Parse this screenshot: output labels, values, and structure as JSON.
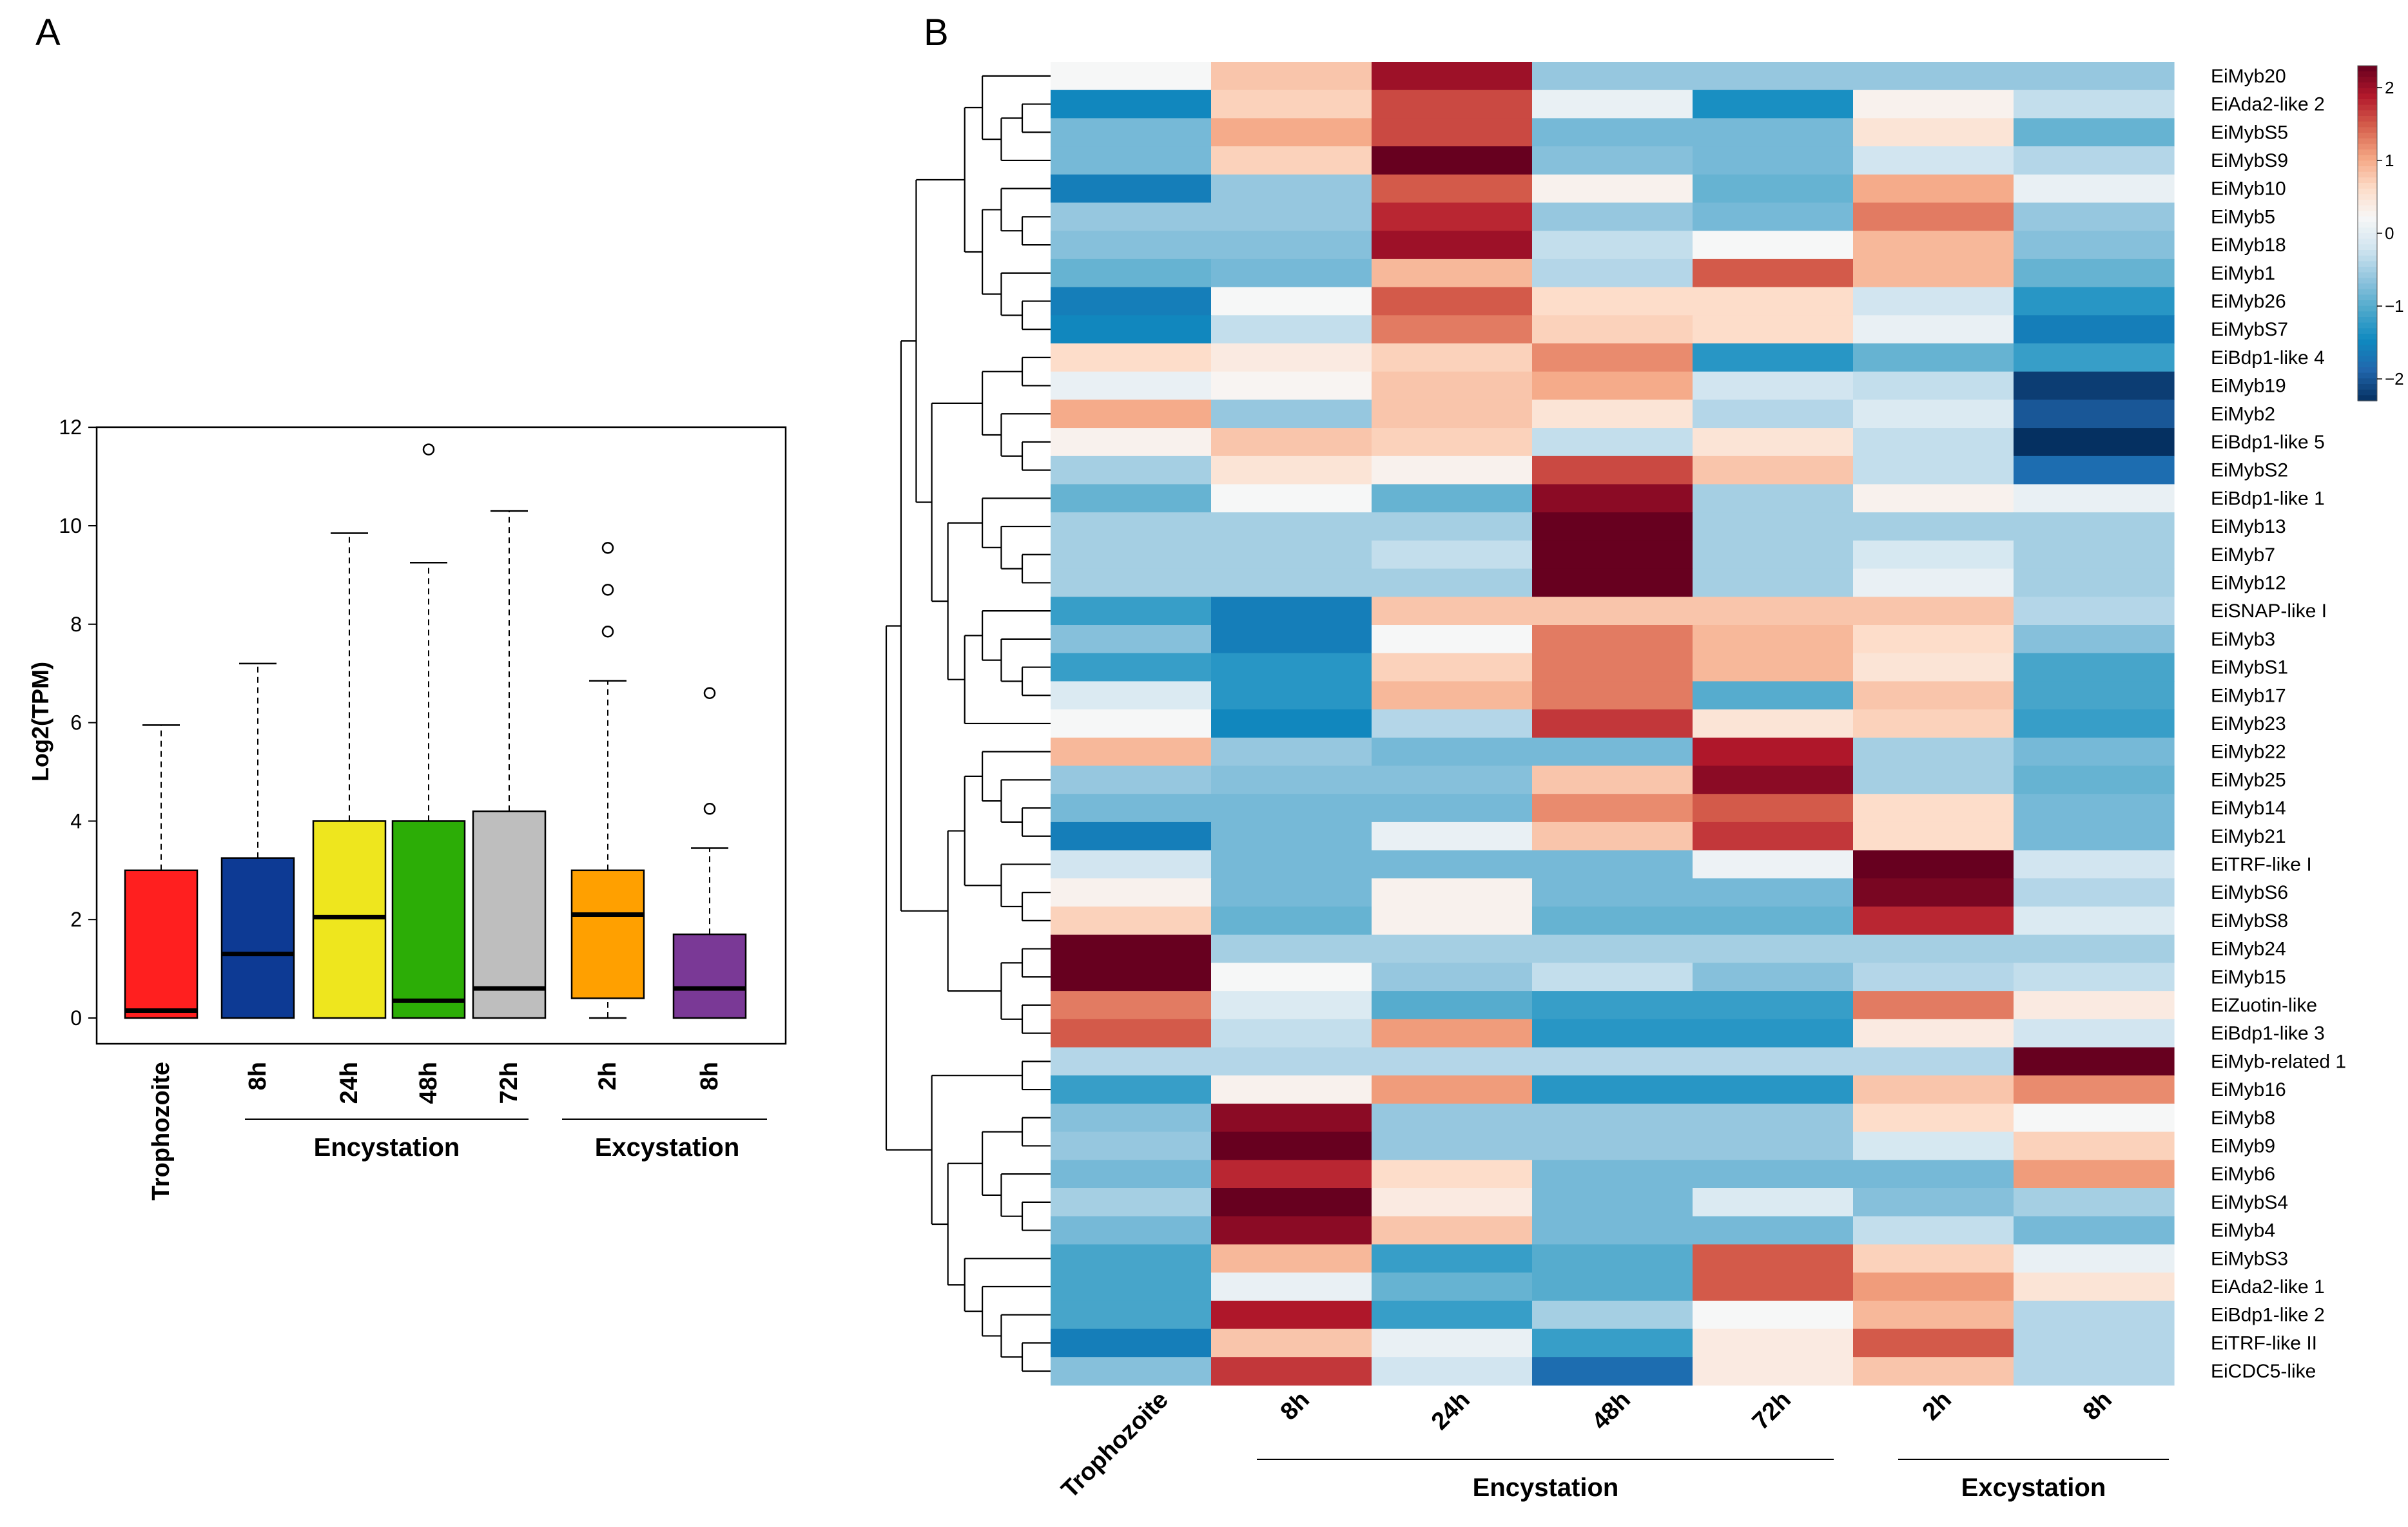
{
  "panels": {
    "a": "A",
    "b": "B"
  },
  "chart_data": [
    {
      "type": "box",
      "title": "",
      "ylabel": "Log2(TPM)",
      "ylim": [
        -0.5,
        12
      ],
      "yticks": [
        "0",
        "2",
        "4",
        "6",
        "8",
        "10",
        "12"
      ],
      "categories": [
        "Trophozoite",
        "8h",
        "24h",
        "48h",
        "72h",
        "2h",
        "8h"
      ],
      "groups": [
        {
          "label": "Encystation",
          "categories": [
            "8h",
            "24h",
            "48h",
            "72h"
          ]
        },
        {
          "label": "Excystation",
          "categories": [
            "2h",
            "8h"
          ]
        }
      ],
      "boxes": [
        {
          "name": "Trophozoite",
          "q1": 0,
          "median": 0.15,
          "q3": 3.0,
          "lower": 0,
          "upper": 5.95,
          "outliers": [],
          "color": "#ff1f1f"
        },
        {
          "name": "8h",
          "q1": 0,
          "median": 1.3,
          "q3": 3.25,
          "lower": 0,
          "upper": 7.2,
          "outliers": [],
          "color": "#0d3a94"
        },
        {
          "name": "24h",
          "q1": 0,
          "median": 2.05,
          "q3": 4.0,
          "lower": 0,
          "upper": 9.85,
          "outliers": [],
          "color": "#eee61e"
        },
        {
          "name": "48h",
          "q1": 0,
          "median": 0.35,
          "q3": 4.0,
          "lower": 0,
          "upper": 9.25,
          "outliers": [
            11.55
          ],
          "color": "#2cad06"
        },
        {
          "name": "72h",
          "q1": 0,
          "median": 0.6,
          "q3": 4.2,
          "lower": 0,
          "upper": 10.3,
          "outliers": [],
          "color": "#bebebe"
        },
        {
          "name": "2h",
          "q1": 0.4,
          "median": 2.1,
          "q3": 3.0,
          "lower": 0,
          "upper": 6.85,
          "outliers": [
            7.85,
            8.7,
            9.55
          ],
          "color": "#ffa000"
        },
        {
          "name": "8h",
          "q1": 0,
          "median": 0.6,
          "q3": 1.7,
          "lower": 0,
          "upper": 3.45,
          "outliers": [
            4.25,
            6.6
          ],
          "color": "#7a3996"
        }
      ]
    },
    {
      "type": "heatmap",
      "title": "",
      "columns": [
        "Trophozoite",
        "8h",
        "24h",
        "48h",
        "72h",
        "2h",
        "8h"
      ],
      "groups": [
        {
          "label": "Encystation",
          "columns": [
            "8h",
            "24h",
            "48h",
            "72h"
          ]
        },
        {
          "label": "Excystation",
          "columns": [
            "2h",
            "8h"
          ]
        }
      ],
      "color_scale": {
        "min": -2.3,
        "max": 2.3,
        "ticks": [
          "2",
          "1",
          "0",
          "−1",
          "−2"
        ],
        "colors": [
          "#053061",
          "#2166ac",
          "#0f8ac0",
          "#4fa9cc",
          "#92c5de",
          "#d1e5f0",
          "#f7f7f7",
          "#fddbc7",
          "#f4a582",
          "#d6604d",
          "#b2182b",
          "#67001f"
        ]
      },
      "rows": [
        {
          "gene": "EiMyb20",
          "values": [
            0.2,
            0.8,
            2.0,
            -0.6,
            -0.6,
            -0.6,
            -0.6
          ]
        },
        {
          "gene": "EiAda2-like 2",
          "values": [
            -1.5,
            0.7,
            1.6,
            0.05,
            -1.4,
            0.3,
            -0.3
          ]
        },
        {
          "gene": "EiMybS5",
          "values": [
            -0.8,
            1.0,
            1.6,
            -0.8,
            -0.8,
            0.5,
            -0.9
          ]
        },
        {
          "gene": "EiMybS9",
          "values": [
            -0.8,
            0.7,
            2.4,
            -0.7,
            -0.8,
            -0.2,
            -0.4
          ]
        },
        {
          "gene": "EiMyb10",
          "values": [
            -1.6,
            -0.6,
            1.5,
            0.3,
            -0.9,
            1.0,
            0.05
          ]
        },
        {
          "gene": "EiMyb5",
          "values": [
            -0.6,
            -0.6,
            1.8,
            -0.6,
            -0.8,
            1.3,
            -0.6
          ]
        },
        {
          "gene": "EiMyb18",
          "values": [
            -0.7,
            -0.7,
            2.0,
            -0.3,
            0.2,
            0.9,
            -0.7
          ]
        },
        {
          "gene": "EiMyb1",
          "values": [
            -0.9,
            -0.8,
            0.9,
            -0.4,
            1.5,
            0.9,
            -0.9
          ]
        },
        {
          "gene": "EiMyb26",
          "values": [
            -1.6,
            0.2,
            1.5,
            0.6,
            0.6,
            -0.2,
            -1.3
          ]
        },
        {
          "gene": "EiMybS7",
          "values": [
            -1.5,
            -0.3,
            1.3,
            0.7,
            0.6,
            0.05,
            -1.6
          ]
        },
        {
          "gene": "EiBdp1-like 4",
          "values": [
            0.6,
            0.4,
            0.7,
            1.2,
            -1.3,
            -0.9,
            -1.2
          ]
        },
        {
          "gene": "EiMyb19",
          "values": [
            0.05,
            0.25,
            0.8,
            1.0,
            -0.2,
            -0.3,
            -2.2
          ]
        },
        {
          "gene": "EiMyb2",
          "values": [
            1.0,
            -0.6,
            0.8,
            0.5,
            -0.4,
            -0.1,
            -2.0
          ]
        },
        {
          "gene": "EiBdp1-like 5",
          "values": [
            0.3,
            0.8,
            0.7,
            -0.3,
            0.5,
            -0.3,
            -2.3
          ]
        },
        {
          "gene": "EiMybS2",
          "values": [
            -0.5,
            0.5,
            0.3,
            1.6,
            0.8,
            -0.3,
            -1.8
          ]
        },
        {
          "gene": "EiBdp1-like 1",
          "values": [
            -0.9,
            0.2,
            -0.9,
            2.1,
            -0.5,
            0.3,
            0.05
          ]
        },
        {
          "gene": "EiMyb13",
          "values": [
            -0.5,
            -0.5,
            -0.5,
            2.3,
            -0.5,
            -0.5,
            -0.5
          ]
        },
        {
          "gene": "EiMyb7",
          "values": [
            -0.5,
            -0.5,
            -0.3,
            2.3,
            -0.5,
            -0.15,
            -0.5
          ]
        },
        {
          "gene": "EiMyb12",
          "values": [
            -0.5,
            -0.5,
            -0.5,
            2.3,
            -0.5,
            0.05,
            -0.5
          ]
        },
        {
          "gene": "EiSNAP-like I",
          "values": [
            -1.2,
            -1.6,
            0.8,
            0.8,
            0.8,
            0.8,
            -0.4
          ]
        },
        {
          "gene": "EiMyb3",
          "values": [
            -0.7,
            -1.6,
            0.2,
            1.3,
            0.9,
            0.6,
            -0.7
          ]
        },
        {
          "gene": "EiMybS1",
          "values": [
            -1.2,
            -1.3,
            0.7,
            1.3,
            0.9,
            0.5,
            -1.1
          ]
        },
        {
          "gene": "EiMyb17",
          "values": [
            -0.1,
            -1.3,
            0.9,
            1.3,
            -1.0,
            0.8,
            -1.1
          ]
        },
        {
          "gene": "EiMyb23",
          "values": [
            0.2,
            -1.5,
            -0.4,
            1.7,
            0.5,
            0.7,
            -1.2
          ]
        },
        {
          "gene": "EiMyb22",
          "values": [
            0.9,
            -0.6,
            -0.8,
            -0.8,
            1.9,
            -0.5,
            -0.8
          ]
        },
        {
          "gene": "EiMyb25",
          "values": [
            -0.6,
            -0.7,
            -0.7,
            0.8,
            2.1,
            -0.5,
            -0.9
          ]
        },
        {
          "gene": "EiMyb14",
          "values": [
            -0.8,
            -0.8,
            -0.8,
            1.2,
            1.5,
            0.6,
            -0.8
          ]
        },
        {
          "gene": "EiMyb21",
          "values": [
            -1.6,
            -0.8,
            0.05,
            0.8,
            1.7,
            0.6,
            -0.8
          ]
        },
        {
          "gene": "EiTRF-like I",
          "values": [
            -0.2,
            -0.8,
            -0.8,
            -0.8,
            0.1,
            2.3,
            -0.2
          ]
        },
        {
          "gene": "EiMybS6",
          "values": [
            0.3,
            -0.8,
            0.3,
            -0.8,
            -0.8,
            2.2,
            -0.4
          ]
        },
        {
          "gene": "EiMybS8",
          "values": [
            0.7,
            -0.9,
            0.3,
            -0.9,
            -0.9,
            1.8,
            -0.1
          ]
        },
        {
          "gene": "EiMyb24",
          "values": [
            2.3,
            -0.5,
            -0.5,
            -0.5,
            -0.5,
            -0.5,
            -0.5
          ]
        },
        {
          "gene": "EiMyb15",
          "values": [
            2.3,
            0.2,
            -0.6,
            -0.3,
            -0.7,
            -0.4,
            -0.3
          ]
        },
        {
          "gene": "EiZuotin-like",
          "values": [
            1.3,
            -0.1,
            -1.0,
            -1.2,
            -1.2,
            1.3,
            0.4
          ]
        },
        {
          "gene": "EiBdp1-like 3",
          "values": [
            1.5,
            -0.3,
            1.1,
            -1.3,
            -1.3,
            0.4,
            -0.2
          ]
        },
        {
          "gene": "EiMyb-related 1",
          "values": [
            -0.4,
            -0.4,
            -0.4,
            -0.4,
            -0.4,
            -0.4,
            2.3
          ]
        },
        {
          "gene": "EiMyb16",
          "values": [
            -1.2,
            0.3,
            1.1,
            -1.3,
            -1.3,
            0.8,
            1.2
          ]
        },
        {
          "gene": "EiMyb8",
          "values": [
            -0.7,
            2.1,
            -0.6,
            -0.6,
            -0.6,
            0.6,
            0.2
          ]
        },
        {
          "gene": "EiMyb9",
          "values": [
            -0.6,
            2.3,
            -0.6,
            -0.6,
            -0.6,
            -0.15,
            0.7
          ]
        },
        {
          "gene": "EiMyb6",
          "values": [
            -0.8,
            1.8,
            0.6,
            -0.8,
            -0.8,
            -0.8,
            1.1
          ]
        },
        {
          "gene": "EiMybS4",
          "values": [
            -0.5,
            2.3,
            0.4,
            -0.8,
            -0.1,
            -0.7,
            -0.5
          ]
        },
        {
          "gene": "EiMyb4",
          "values": [
            -0.8,
            2.1,
            0.8,
            -0.8,
            -0.8,
            -0.3,
            -0.8
          ]
        },
        {
          "gene": "EiMybS3",
          "values": [
            -1.1,
            0.9,
            -1.2,
            -1.0,
            1.5,
            0.7,
            0.05
          ]
        },
        {
          "gene": "EiAda2-like 1",
          "values": [
            -1.1,
            0.05,
            -0.9,
            -1.0,
            1.5,
            1.1,
            0.5
          ]
        },
        {
          "gene": "EiBdp1-like 2",
          "values": [
            -1.1,
            1.9,
            -1.2,
            -0.5,
            0.2,
            0.9,
            -0.4
          ]
        },
        {
          "gene": "EiTRF-like II",
          "values": [
            -1.6,
            0.8,
            0.05,
            -1.2,
            0.4,
            1.5,
            -0.4
          ]
        },
        {
          "gene": "EiCDC5-like",
          "values": [
            -0.7,
            1.7,
            -0.2,
            -1.8,
            0.4,
            0.8,
            -0.4
          ]
        }
      ]
    }
  ]
}
